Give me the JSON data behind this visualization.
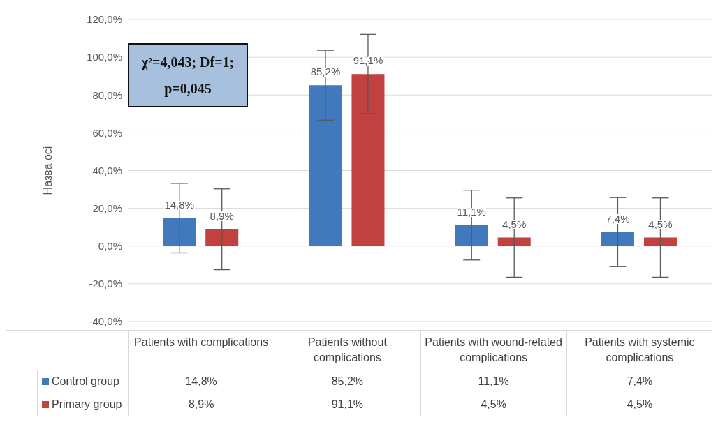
{
  "chart_data": {
    "type": "bar",
    "ylabel": "Назва осі",
    "categories": [
      "Patients with complications",
      "Patients without complications",
      "Patients with wound-related complications",
      "Patients with systemic complications"
    ],
    "series": [
      {
        "name": "Control group",
        "color": "#4279bd",
        "values": [
          14.8,
          85.2,
          11.1,
          7.4
        ],
        "errors": [
          18.4,
          18.5,
          18.5,
          18.3
        ],
        "value_labels": [
          "14,8%",
          "85,2%",
          "11,1%",
          "7,4%"
        ]
      },
      {
        "name": "Primary group",
        "color": "#c0413d",
        "values": [
          8.9,
          91.1,
          4.5,
          4.5
        ],
        "errors": [
          21.4,
          21,
          21,
          21
        ],
        "value_labels": [
          "8,9%",
          "91,1%",
          "4,5%",
          "4,5%"
        ]
      }
    ],
    "ylim": [
      -40,
      120
    ],
    "yticks": [
      {
        "value": -40,
        "label": "-40,0%"
      },
      {
        "value": -20,
        "label": "-20,0%"
      },
      {
        "value": 0,
        "label": "0,0%"
      },
      {
        "value": 20,
        "label": "20,0%"
      },
      {
        "value": 40,
        "label": "40,0%"
      },
      {
        "value": 60,
        "label": "60,0%"
      },
      {
        "value": 80,
        "label": "80,0%"
      },
      {
        "value": 100,
        "label": "100,0%"
      },
      {
        "value": 120,
        "label": "120,0%"
      }
    ],
    "grid": "y",
    "legend": "bottom",
    "annotations": [
      "χ²=4,043; Df=1; p=0,045"
    ]
  }
}
